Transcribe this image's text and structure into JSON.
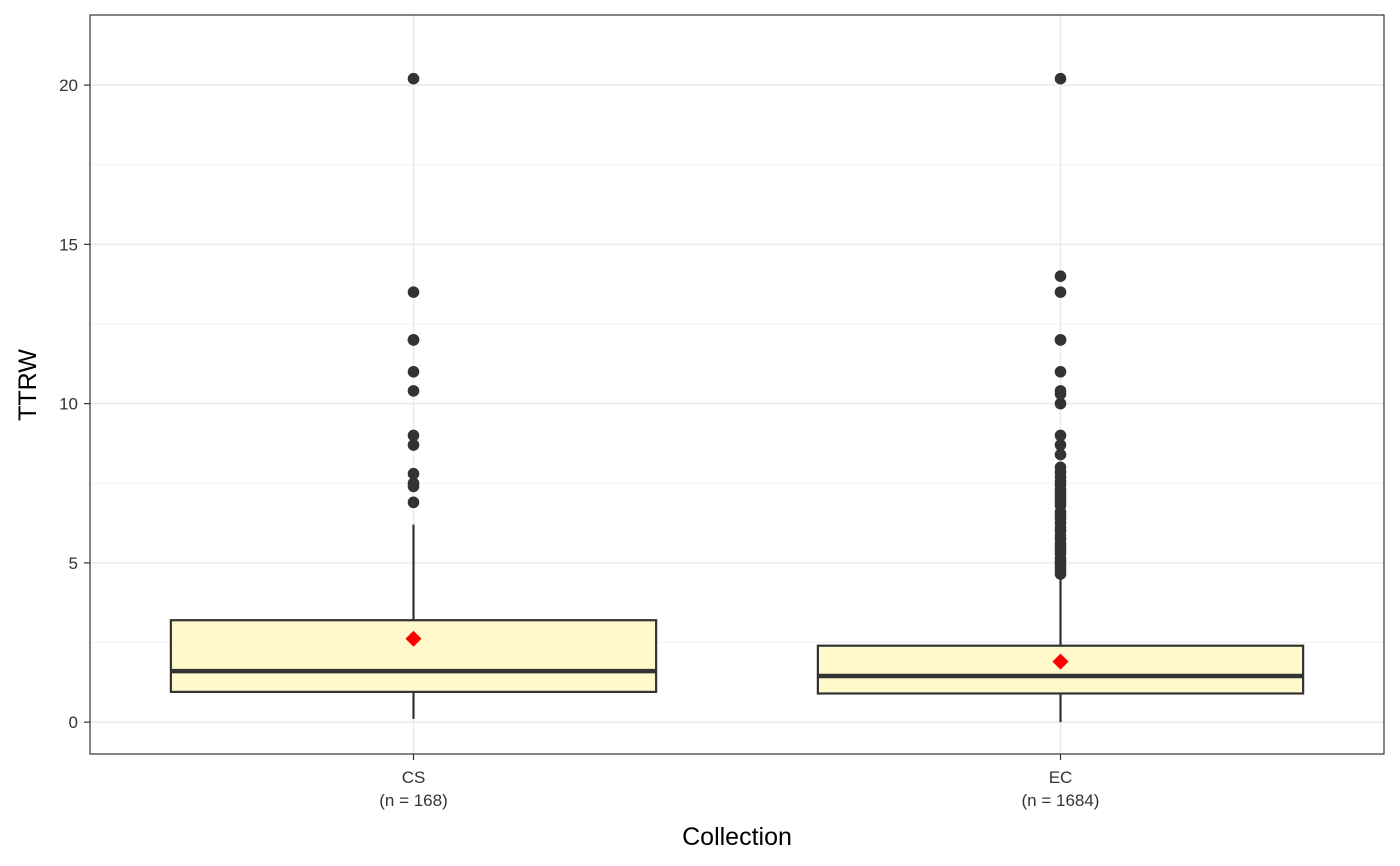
{
  "chart_data": {
    "type": "boxplot",
    "title": "",
    "xlabel": "Collection",
    "ylabel": "TTRW",
    "ylim": [
      -1,
      22.2
    ],
    "yticks": [
      0,
      5,
      10,
      15,
      20
    ],
    "grid": true,
    "categories": [
      {
        "name": "CS",
        "n_label": "(n = 168)",
        "q1": 0.95,
        "median": 1.6,
        "q3": 3.2,
        "whisker_low": 0.1,
        "whisker_high": 6.2,
        "mean": 2.62,
        "outliers": [
          6.9,
          7.4,
          7.5,
          7.8,
          8.7,
          9.0,
          10.4,
          11.0,
          12.0,
          12.0,
          13.5,
          20.2
        ]
      },
      {
        "name": "EC",
        "n_label": "(n = 1684)",
        "q1": 0.9,
        "median": 1.45,
        "q3": 2.4,
        "whisker_low": 0.0,
        "whisker_high": 4.6,
        "mean": 1.9,
        "outliers": [
          4.65,
          4.75,
          4.85,
          4.95,
          5.05,
          5.15,
          5.3,
          5.4,
          5.5,
          5.6,
          5.75,
          5.85,
          6.0,
          6.1,
          6.25,
          6.4,
          6.5,
          6.6,
          6.8,
          6.9,
          7.0,
          7.1,
          7.2,
          7.3,
          7.45,
          7.55,
          7.7,
          7.85,
          8.0,
          8.4,
          8.7,
          9.0,
          10.0,
          10.3,
          10.4,
          11.0,
          12.0,
          12.0,
          13.5,
          14.0,
          20.2
        ]
      }
    ],
    "colors": {
      "box_fill": "#fff9cc",
      "box_stroke": "#333333",
      "outlier": "#333333",
      "mean_marker": "#ff0000",
      "grid_major": "#ebebeb",
      "grid_minor": "#f2f2f2",
      "panel_border": "#333333"
    }
  }
}
